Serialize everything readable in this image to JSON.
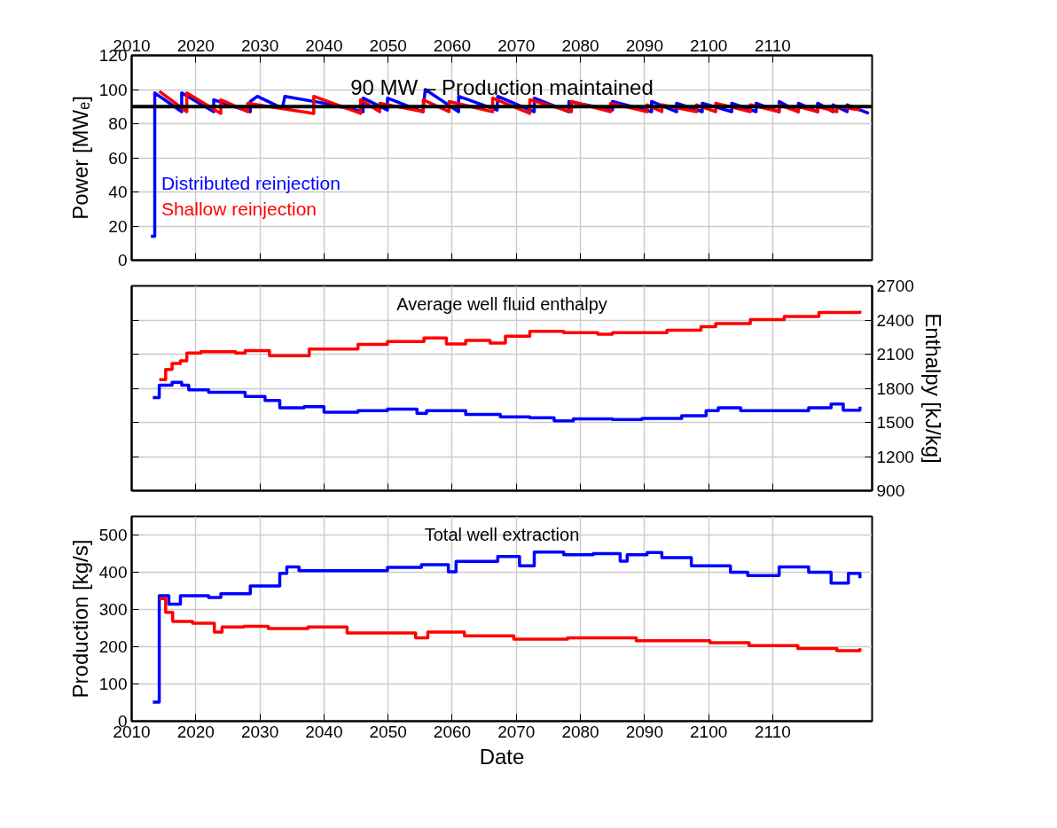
{
  "chart_data": [
    {
      "type": "line",
      "ylabel": "Power [MWₑ]",
      "xlim": [
        2010,
        2125.5
      ],
      "xticks": [
        2010,
        2020,
        2030,
        2040,
        2050,
        2060,
        2070,
        2080,
        2090,
        2100,
        2110
      ],
      "x2lim": [
        2010,
        2125.5
      ],
      "x2ticks": [
        2010,
        2020,
        2030,
        2040,
        2050,
        2060,
        2070,
        2080,
        2090,
        2100,
        2110
      ],
      "ylim": [
        0,
        120
      ],
      "yticks": [
        0,
        20,
        40,
        60,
        80,
        100,
        120
      ],
      "tick_labels": "y",
      "grid": true,
      "legend": "left",
      "line_style": "solid",
      "ref_lines": [
        {
          "axis": "y",
          "value": 90,
          "label": "90 MW – Production maintained",
          "color": "#000000"
        }
      ],
      "series": [
        {
          "name": "Distributed reinjection",
          "color": "#0000ff",
          "x": [
            2013.0,
            2013.6,
            2013.6,
            2017.8,
            2017.8,
            2022.8,
            2022.8,
            2028.5,
            2028.5,
            2029.6,
            2033.5,
            2033.9,
            2040,
            2046.1,
            2046.1,
            2049.9,
            2049.9,
            2055.4,
            2055.8,
            2061,
            2061,
            2067,
            2067.1,
            2072.8,
            2072.8,
            2078.2,
            2078.2,
            2085,
            2085,
            2091.1,
            2091.1,
            2095,
            2095,
            2099,
            2099,
            2103.6,
            2103.6,
            2107.4,
            2107.4,
            2111,
            2111,
            2114,
            2114,
            2117,
            2117,
            2119.4,
            2119.4,
            2121.6,
            2121.6,
            2125
          ],
          "values": [
            14,
            14,
            98,
            87,
            98,
            87,
            94,
            87,
            93,
            96,
            89,
            96,
            92,
            87,
            95,
            88,
            95,
            87,
            100,
            87,
            96,
            88,
            96,
            87,
            95,
            87,
            93,
            88,
            93,
            87,
            93,
            87,
            92,
            87,
            92,
            87,
            92,
            87,
            92,
            87,
            93,
            87,
            92,
            87,
            92,
            87,
            91,
            87,
            91,
            86
          ]
        },
        {
          "name": "Shallow reinjection",
          "color": "#ff0000",
          "x": [
            2014.3,
            2018.6,
            2018.6,
            2023.9,
            2023.9,
            2028.1,
            2028.1,
            2038.4,
            2038.4,
            2045.7,
            2045.7,
            2048.7,
            2048.7,
            2055.5,
            2055.5,
            2059.5,
            2059.5,
            2066.3,
            2066.3,
            2072.1,
            2072.1,
            2078.6,
            2078.6,
            2084.7,
            2084.7,
            2090.4,
            2090.4,
            2092.7,
            2092.7,
            2098.1,
            2098.1,
            2101.1,
            2101.1,
            2106.5,
            2106.5,
            2111,
            2111,
            2114,
            2114,
            2117,
            2117,
            2120,
            2120,
            2123.6
          ],
          "values": [
            99,
            87,
            98,
            86,
            94,
            87,
            92,
            86,
            96,
            86,
            94,
            87,
            92,
            87,
            94,
            87,
            93,
            87,
            95,
            86,
            94,
            87,
            93,
            87,
            92,
            87,
            91,
            87,
            91,
            87,
            91,
            87,
            92,
            87,
            91,
            87,
            91,
            87,
            90,
            87,
            90,
            87,
            90,
            88
          ]
        }
      ]
    },
    {
      "type": "step",
      "title": "Average well fluid enthalpy",
      "y2label": "Enthalpy [kJ/kg]",
      "xlim": [
        2010,
        2125.5
      ],
      "xticks": [
        2010,
        2020,
        2030,
        2040,
        2050,
        2060,
        2070,
        2080,
        2090,
        2100,
        2110
      ],
      "y2lim": [
        900,
        2700
      ],
      "y2ticks": [
        900,
        1200,
        1500,
        1800,
        2100,
        2400,
        2700
      ],
      "tick_labels": "y",
      "grid": true,
      "line_style": "solid",
      "series": [
        {
          "color": "#ff0000",
          "axis": "y2",
          "x": [
            2014.3,
            2015.3,
            2016.3,
            2017.6,
            2018.6,
            2020.8,
            2026.2,
            2027.7,
            2031.5,
            2033.8,
            2037.7,
            2045.3,
            2049.9,
            2055.6,
            2059.1,
            2062.1,
            2065.9,
            2068.3,
            2072.1,
            2077.4,
            2082.7,
            2085,
            2088.9,
            2093.5,
            2098.8,
            2101.1,
            2106.5,
            2111.8,
            2117.2,
            2121,
            2123.6
          ],
          "values": [
            1876,
            1965,
            2019,
            2042,
            2109,
            2122,
            2109,
            2131,
            2086,
            2086,
            2145,
            2185,
            2212,
            2243,
            2189,
            2221,
            2198,
            2257,
            2301,
            2288,
            2275,
            2288,
            2288,
            2310,
            2342,
            2369,
            2404,
            2431,
            2467,
            2467,
            2481
          ]
        },
        {
          "color": "#0000ff",
          "axis": "y2",
          "x": [
            2013.3,
            2014.3,
            2016.3,
            2017.8,
            2018.9,
            2022,
            2024.7,
            2027.7,
            2030.8,
            2033.1,
            2036.9,
            2040,
            2045.3,
            2049.9,
            2054.5,
            2056,
            2062.1,
            2067.5,
            2072.1,
            2075.9,
            2078.9,
            2085,
            2089.6,
            2095.8,
            2099.6,
            2101.5,
            2105,
            2109.5,
            2115.6,
            2119.1,
            2121,
            2123.6
          ],
          "values": [
            1719,
            1827,
            1853,
            1827,
            1786,
            1764,
            1764,
            1728,
            1692,
            1629,
            1638,
            1589,
            1603,
            1616,
            1580,
            1603,
            1571,
            1549,
            1540,
            1513,
            1531,
            1526,
            1535,
            1558,
            1603,
            1629,
            1603,
            1603,
            1629,
            1661,
            1607,
            1638
          ]
        }
      ]
    },
    {
      "type": "step",
      "title": "Total well extraction",
      "xlabel": "Date",
      "ylabel": "Production [kg/s]",
      "xlim": [
        2010,
        2125.5
      ],
      "xticks": [
        2010,
        2020,
        2030,
        2040,
        2050,
        2060,
        2070,
        2080,
        2090,
        2100,
        2110
      ],
      "ylim": [
        0,
        550
      ],
      "yticks": [
        0,
        100,
        200,
        300,
        400,
        500
      ],
      "grid": true,
      "line_style": "solid",
      "series": [
        {
          "color": "#0000ff",
          "x": [
            2013.3,
            2014.3,
            2015.8,
            2017.6,
            2022,
            2023.9,
            2028.5,
            2033.1,
            2034.2,
            2036.1,
            2040.7,
            2044.5,
            2049.9,
            2055.2,
            2059.4,
            2060.6,
            2067.1,
            2070.5,
            2072.8,
            2077.4,
            2082,
            2086.2,
            2087.3,
            2090.4,
            2092.7,
            2097.3,
            2103.4,
            2106.1,
            2111,
            2115.6,
            2119.1,
            2121.8,
            2123.6
          ],
          "values": [
            51,
            337,
            314,
            337,
            332,
            342,
            363,
            397,
            414,
            404,
            404,
            404,
            413,
            420,
            401,
            429,
            442,
            417,
            454,
            447,
            450,
            430,
            447,
            453,
            439,
            417,
            400,
            391,
            414,
            400,
            371,
            397,
            384
          ]
        },
        {
          "color": "#ff0000",
          "x": [
            2014.3,
            2015.3,
            2016.4,
            2019.5,
            2022.9,
            2024.1,
            2027.5,
            2031.3,
            2037.5,
            2043.6,
            2049.7,
            2054.3,
            2056.2,
            2061.9,
            2069.6,
            2078,
            2084.1,
            2088.7,
            2100.2,
            2106.3,
            2113.9,
            2120,
            2123.6
          ],
          "values": [
            329,
            292,
            268,
            263,
            239,
            253,
            255,
            249,
            253,
            237,
            237,
            224,
            239,
            229,
            220,
            224,
            224,
            216,
            211,
            203,
            195,
            189,
            196
          ]
        }
      ]
    }
  ]
}
